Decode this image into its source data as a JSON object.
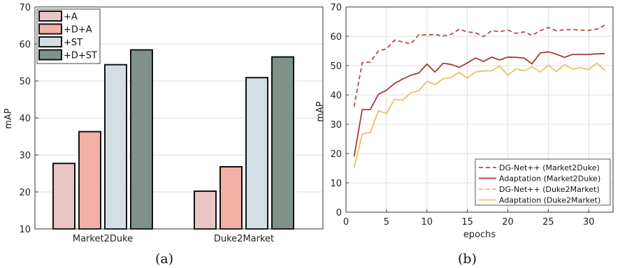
{
  "chart_data": [
    {
      "type": "bar",
      "categories": [
        "Market2Duke",
        "Duke2Market"
      ],
      "series": [
        {
          "name": "+A",
          "values": [
            27.7,
            20.2
          ],
          "color": "#e8c6c6"
        },
        {
          "name": "+D+A",
          "values": [
            36.3,
            26.8
          ],
          "color": "#f2b0a6"
        },
        {
          "name": "+ST",
          "values": [
            54.4,
            50.9
          ],
          "color": "#d4dfe3"
        },
        {
          "name": "+D+ST",
          "values": [
            58.4,
            56.5
          ],
          "color": "#7f9189"
        }
      ],
      "ylabel": "mAP",
      "ylim": [
        10,
        70
      ],
      "yticks": [
        "10",
        "20",
        "30",
        "40",
        "50",
        "60",
        "70"
      ],
      "grid": true,
      "legend": "top-left",
      "caption": "(a)"
    },
    {
      "type": "line",
      "x": [
        1,
        2,
        3,
        4,
        5,
        6,
        7,
        8,
        9,
        10,
        11,
        12,
        13,
        14,
        15,
        16,
        17,
        18,
        19,
        20,
        21,
        22,
        23,
        24,
        25,
        26,
        27,
        28,
        29,
        30,
        31,
        32
      ],
      "series": [
        {
          "name": "DG-Net++ (Market2Duke)",
          "style": "dashed",
          "color": "#b24b4b",
          "values": [
            36,
            51,
            51.2,
            55,
            55.7,
            58.7,
            58.1,
            57.4,
            60.5,
            60.5,
            60.6,
            60.1,
            60.7,
            62.4,
            61.5,
            61.2,
            59.9,
            61.9,
            61.6,
            62.1,
            61.0,
            61.5,
            60.3,
            61.9,
            63.0,
            61.9,
            62.2,
            62.3,
            62.1,
            62.0,
            62.4,
            63.8
          ]
        },
        {
          "name": "Adaptation (Market2Duke)",
          "style": "solid",
          "color": "#a83a3a",
          "values": [
            19,
            35,
            35,
            40.2,
            41.6,
            43.9,
            45.4,
            46.7,
            47.5,
            50.5,
            47.8,
            50.8,
            50.4,
            49.4,
            50.9,
            52.6,
            51.4,
            52.9,
            51.9,
            52.9,
            52.8,
            52.6,
            50.6,
            54.3,
            54.7,
            53.9,
            52.8,
            53.8,
            53.8,
            53.8,
            54.0,
            54.1
          ]
        },
        {
          "name": "DG-Net++ (Duke2Market)",
          "style": "dashed",
          "color": "#e8c46a",
          "values": [
            15.2,
            26.6,
            27.2,
            34.6,
            33.7,
            38.5,
            38.2,
            40.7,
            41.5,
            44.6,
            43.5,
            45.5,
            46,
            47.7,
            45.8,
            47.8,
            48.2,
            48.2,
            49.8,
            46.7,
            48.9,
            48.2,
            49.6,
            47.8,
            50.1,
            48.0,
            50.3,
            48.8,
            49.3,
            48.7,
            50.8,
            48.4
          ]
        },
        {
          "name": "Adaptation (Duke2Market)",
          "style": "solid",
          "color": "#e8c46a",
          "values": [
            15.2,
            26.6,
            27.2,
            34.6,
            33.7,
            38.5,
            38.2,
            40.7,
            41.5,
            44.6,
            43.5,
            45.5,
            46,
            47.7,
            45.8,
            47.8,
            48.2,
            48.2,
            49.8,
            46.7,
            48.9,
            48.2,
            49.6,
            47.8,
            50.1,
            48.0,
            50.3,
            48.8,
            49.3,
            48.7,
            50.8,
            48.4
          ]
        }
      ],
      "xlabel": "epochs",
      "ylabel": "mAP",
      "xlim": [
        0,
        33
      ],
      "ylim": [
        0,
        70
      ],
      "xticks": [
        "0",
        "5",
        "10",
        "15",
        "20",
        "25",
        "30"
      ],
      "yticks": [
        "0",
        "10",
        "20",
        "30",
        "40",
        "50",
        "60",
        "70"
      ],
      "grid": true,
      "legend": "bottom-right",
      "caption": "(b)"
    }
  ]
}
